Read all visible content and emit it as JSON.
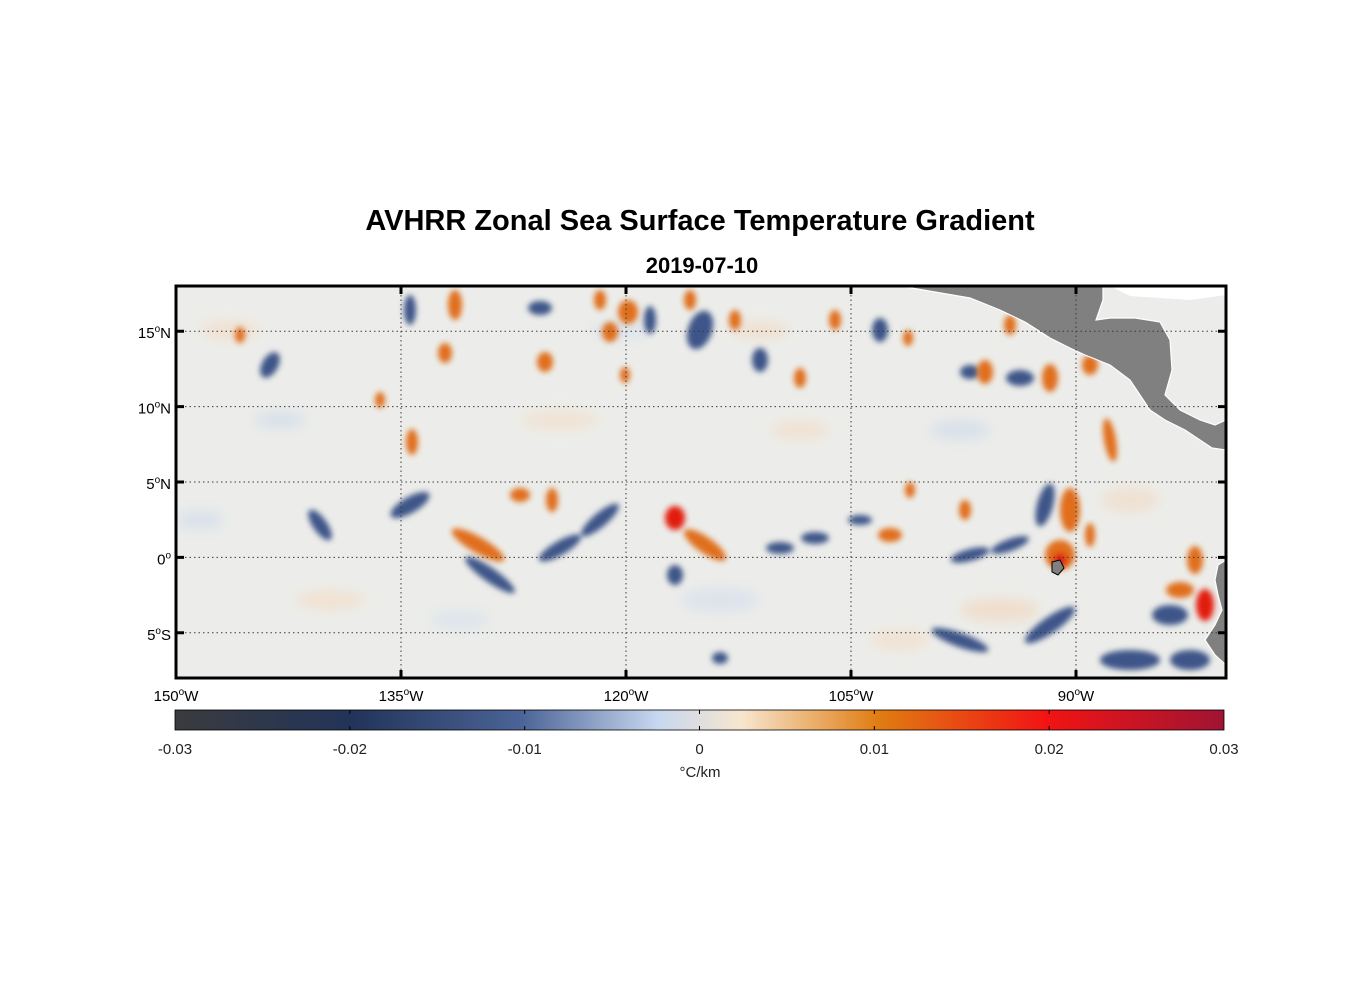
{
  "title": "AVHRR Zonal Sea Surface Temperature Gradient",
  "subtitle": "2019-07-10",
  "map": {
    "lon_range": [
      -150,
      -80
    ],
    "lat_range": [
      -8,
      18
    ],
    "lon_ticks": [
      {
        "value": -150,
        "deg": "150",
        "hemi": "W"
      },
      {
        "value": -135,
        "deg": "135",
        "hemi": "W"
      },
      {
        "value": -120,
        "deg": "120",
        "hemi": "W"
      },
      {
        "value": -105,
        "deg": "105",
        "hemi": "W"
      },
      {
        "value": -90,
        "deg": "90",
        "hemi": "W"
      }
    ],
    "lat_ticks": [
      {
        "value": 15,
        "deg": "15",
        "hemi": "N"
      },
      {
        "value": 10,
        "deg": "10",
        "hemi": "N"
      },
      {
        "value": 5,
        "deg": "5",
        "hemi": "N"
      },
      {
        "value": 0,
        "deg": "0",
        "hemi": ""
      },
      {
        "value": -5,
        "deg": "5",
        "hemi": "S"
      }
    ],
    "grid": true,
    "land_color": "#808080",
    "ocean_background": "#ecedea"
  },
  "colorbar": {
    "range": [
      -0.03,
      0.03
    ],
    "ticks": [
      "-0.03",
      "-0.02",
      "-0.01",
      "0",
      "0.01",
      "0.02",
      "0.03"
    ],
    "units": "°C/km",
    "colors": [
      "#3a3b3e",
      "#22345a",
      "#4b6497",
      "#c7d7ef",
      "#f7e6cf",
      "#e07d12",
      "#f21414",
      "#a01433"
    ]
  }
}
